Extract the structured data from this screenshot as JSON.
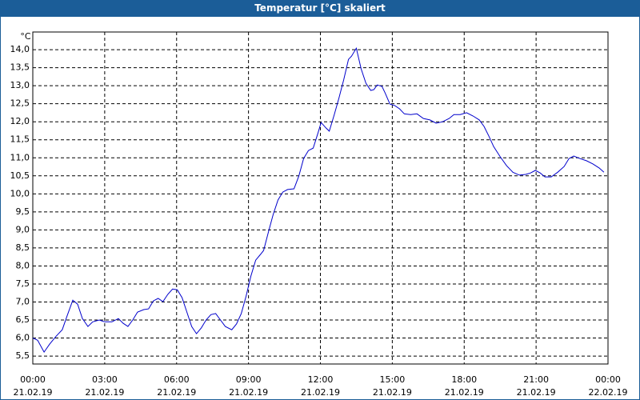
{
  "chart_data": {
    "type": "line",
    "title": "Temperatur [°C] skaliert",
    "y_unit": "°C",
    "xlim": [
      0,
      24
    ],
    "ylim": [
      5.28,
      14.49
    ],
    "grid": true,
    "xticks": [
      {
        "value": 0,
        "label": "00:00",
        "sublabel": "21.02.19"
      },
      {
        "value": 3,
        "label": "03:00",
        "sublabel": "21.02.19"
      },
      {
        "value": 6,
        "label": "06:00",
        "sublabel": "21.02.19"
      },
      {
        "value": 9,
        "label": "09:00",
        "sublabel": "21.02.19"
      },
      {
        "value": 12,
        "label": "12:00",
        "sublabel": "21.02.19"
      },
      {
        "value": 15,
        "label": "15:00",
        "sublabel": "21.02.19"
      },
      {
        "value": 18,
        "label": "18:00",
        "sublabel": "21.02.19"
      },
      {
        "value": 21,
        "label": "21:00",
        "sublabel": "21.02.19"
      },
      {
        "value": 24,
        "label": "00:00",
        "sublabel": "22.02.19"
      }
    ],
    "yticks": [
      {
        "value": 5.5,
        "label": "5,5"
      },
      {
        "value": 6,
        "label": "6,0"
      },
      {
        "value": 6.5,
        "label": "6,5"
      },
      {
        "value": 7,
        "label": "7,0"
      },
      {
        "value": 7.5,
        "label": "7,5"
      },
      {
        "value": 8,
        "label": "8,0"
      },
      {
        "value": 8.5,
        "label": "8,5"
      },
      {
        "value": 9,
        "label": "9,0"
      },
      {
        "value": 9.5,
        "label": "9,5"
      },
      {
        "value": 10,
        "label": "10,0"
      },
      {
        "value": 10.5,
        "label": "10,5"
      },
      {
        "value": 11,
        "label": "11,0"
      },
      {
        "value": 11.5,
        "label": "11,5"
      },
      {
        "value": 12,
        "label": "12,0"
      },
      {
        "value": 12.5,
        "label": "12,5"
      },
      {
        "value": 13,
        "label": "13,0"
      },
      {
        "value": 13.5,
        "label": "13,5"
      },
      {
        "value": 14,
        "label": "14,0"
      }
    ],
    "series": [
      {
        "color": "#0000cc",
        "x": [
          0,
          0.2,
          0.47,
          0.7,
          0.97,
          1.23,
          1.43,
          1.67,
          1.87,
          2.07,
          2.3,
          2.5,
          2.77,
          3.0,
          3.3,
          3.57,
          3.77,
          3.97,
          4.17,
          4.37,
          4.63,
          4.83,
          5.03,
          5.23,
          5.43,
          5.63,
          5.83,
          6.03,
          6.23,
          6.43,
          6.63,
          6.83,
          7.03,
          7.23,
          7.43,
          7.63,
          7.83,
          8.03,
          8.3,
          8.5,
          8.7,
          8.9,
          9.1,
          9.3,
          9.5,
          9.63,
          9.83,
          10.03,
          10.23,
          10.43,
          10.63,
          10.9,
          11.1,
          11.3,
          11.5,
          11.7,
          11.9,
          12.03,
          12.23,
          12.37,
          12.57,
          12.77,
          12.97,
          13.17,
          13.3,
          13.5,
          13.7,
          13.9,
          14.1,
          14.23,
          14.37,
          14.57,
          14.7,
          14.9,
          15.1,
          15.3,
          15.5,
          15.77,
          16.03,
          16.3,
          16.57,
          16.83,
          17.1,
          17.37,
          17.57,
          17.83,
          18.1,
          18.37,
          18.63,
          18.83,
          19.03,
          19.23,
          19.5,
          19.77,
          20.03,
          20.3,
          20.57,
          20.77,
          20.97,
          21.17,
          21.37,
          21.63,
          21.9,
          22.17,
          22.37,
          22.57,
          22.83,
          23.1,
          23.37,
          23.63,
          23.83
        ],
        "values": [
          6.0,
          5.94,
          5.61,
          5.83,
          6.05,
          6.23,
          6.61,
          7.05,
          6.94,
          6.54,
          6.32,
          6.45,
          6.5,
          6.45,
          6.45,
          6.54,
          6.41,
          6.32,
          6.5,
          6.72,
          6.79,
          6.81,
          7.03,
          7.1,
          7.01,
          7.21,
          7.36,
          7.34,
          7.12,
          6.72,
          6.32,
          6.12,
          6.28,
          6.5,
          6.65,
          6.68,
          6.5,
          6.32,
          6.23,
          6.39,
          6.68,
          7.16,
          7.72,
          8.16,
          8.32,
          8.43,
          8.94,
          9.43,
          9.83,
          10.05,
          10.12,
          10.14,
          10.49,
          10.98,
          11.2,
          11.27,
          11.69,
          11.98,
          11.83,
          11.74,
          12.18,
          12.65,
          13.16,
          13.73,
          13.82,
          14.04,
          13.47,
          13.07,
          12.87,
          12.89,
          13.02,
          12.98,
          12.8,
          12.49,
          12.45,
          12.36,
          12.22,
          12.2,
          12.22,
          12.09,
          12.05,
          11.96,
          12.0,
          12.09,
          12.2,
          12.2,
          12.25,
          12.16,
          12.05,
          11.87,
          11.6,
          11.31,
          11.03,
          10.78,
          10.6,
          10.52,
          10.54,
          10.58,
          10.65,
          10.58,
          10.47,
          10.47,
          10.6,
          10.76,
          10.98,
          11.05,
          10.98,
          10.92,
          10.83,
          10.72,
          10.6
        ]
      }
    ]
  }
}
